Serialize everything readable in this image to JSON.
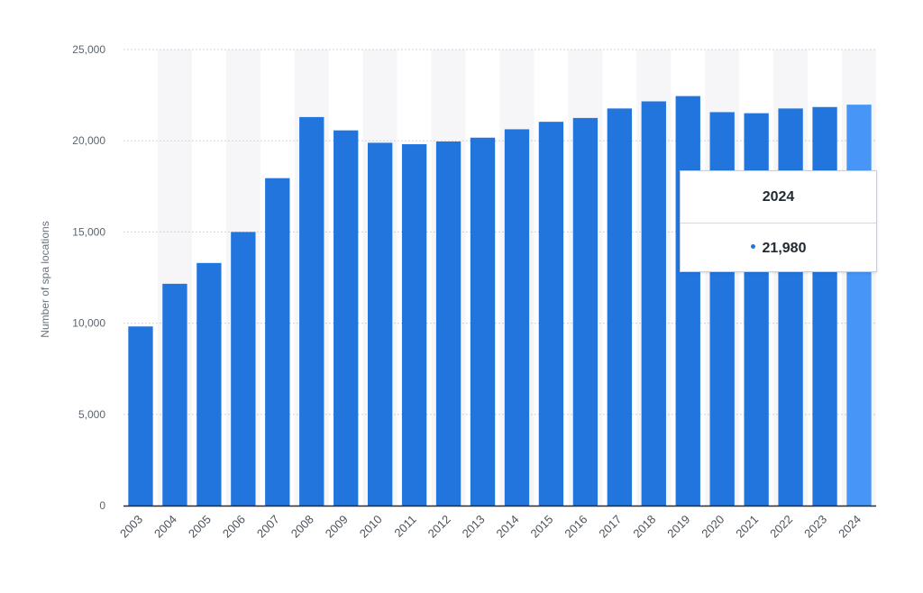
{
  "chart_data": {
    "type": "bar",
    "title": "",
    "xlabel": "",
    "ylabel": "Number of spa locations",
    "categories": [
      "2003",
      "2004",
      "2005",
      "2006",
      "2007",
      "2008",
      "2009",
      "2010",
      "2011",
      "2012",
      "2013",
      "2014",
      "2015",
      "2016",
      "2017",
      "2018",
      "2019",
      "2020",
      "2021",
      "2022",
      "2023",
      "2024"
    ],
    "values": [
      9820,
      12160,
      13300,
      15000,
      17950,
      21300,
      20570,
      19890,
      19810,
      19960,
      20170,
      20630,
      21040,
      21250,
      21770,
      22160,
      22450,
      21570,
      21510,
      21770,
      21850,
      21980
    ],
    "ylim": [
      0,
      25000
    ],
    "yticks": [
      0,
      5000,
      10000,
      15000,
      20000,
      25000
    ],
    "ytick_labels": [
      "0",
      "5,000",
      "10,000",
      "15,000",
      "20,000",
      "25,000"
    ],
    "grid": true,
    "highlighted_index": 21,
    "colors": {
      "bar": "#2375de",
      "bar_highlight": "#4796f7",
      "band": "#f6f6f8",
      "grid": "#c3c7cc",
      "axis": "#2a2a2a"
    }
  },
  "tooltip": {
    "title": "2024",
    "value": "21,980"
  }
}
